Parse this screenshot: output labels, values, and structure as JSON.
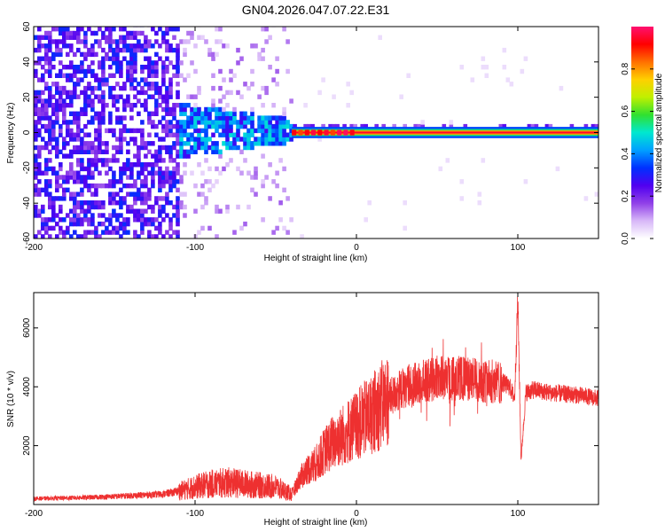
{
  "title": "GN04.2026.047.07.22.E31",
  "chart_data": [
    {
      "type": "heatmap",
      "xlabel": "Height of straight line (km)",
      "ylabel": "Frequency (Hz)",
      "xlim": [
        -200,
        150
      ],
      "ylim": [
        -60,
        60
      ],
      "xticks": [
        -200,
        -100,
        0,
        100
      ],
      "yticks": [
        -60,
        -40,
        -20,
        0,
        20,
        40,
        60
      ],
      "colorbar": {
        "label": "Normalized spectral amplitude",
        "range": [
          0,
          1
        ],
        "ticks": [
          0.0,
          0.2,
          0.4,
          0.6,
          0.8
        ],
        "tick_labels": [
          "0.0",
          "0.2",
          "0.4",
          "0.6",
          "0.8"
        ],
        "colormap": [
          "#ffffff",
          "#d8b8f8",
          "#9040e8",
          "#5000f0",
          "#0030ff",
          "#00a0ff",
          "#00e8d0",
          "#30e030",
          "#c0f000",
          "#ffd000",
          "#ff7000",
          "#ff0000",
          "#ff1070"
        ]
      },
      "regions": [
        {
          "name": "diffuse noise",
          "x_range": [
            -200,
            -110
          ],
          "freq_range": [
            -60,
            60
          ],
          "amplitude": 0.15
        },
        {
          "name": "sparse noise",
          "x_range": [
            -110,
            -40
          ],
          "freq_range": [
            -60,
            60
          ],
          "amplitude": 0.05
        },
        {
          "name": "signal onset cluster",
          "x_range": [
            -110,
            -40
          ],
          "freq_range": [
            -15,
            15
          ],
          "amplitude": 0.25
        },
        {
          "name": "carrier line",
          "x_range": [
            -40,
            150
          ],
          "freq_center": 0,
          "amplitude": 0.95
        }
      ]
    },
    {
      "type": "line",
      "xlabel": "Height of straight line (km)",
      "ylabel": "SNR (10 * v/v)",
      "xlim": [
        -200,
        150
      ],
      "ylim": [
        0,
        7200
      ],
      "xticks": [
        -200,
        -100,
        0,
        100
      ],
      "yticks": [
        2000,
        4000,
        6000
      ],
      "color": "#ee3030",
      "series": [
        {
          "name": "SNR",
          "x": [
            -200,
            -180,
            -160,
            -140,
            -120,
            -110,
            -100,
            -90,
            -80,
            -70,
            -60,
            -50,
            -40,
            -35,
            -30,
            -25,
            -20,
            -15,
            -10,
            -5,
            0,
            10,
            20,
            30,
            40,
            50,
            60,
            70,
            80,
            90,
            95,
            98,
            100,
            102,
            105,
            110,
            120,
            130,
            140,
            150
          ],
          "y": [
            200,
            220,
            250,
            300,
            350,
            450,
            600,
            700,
            750,
            700,
            650,
            600,
            350,
            900,
            1200,
            1400,
            1800,
            2100,
            2300,
            2500,
            2700,
            3100,
            3600,
            4000,
            4150,
            4300,
            4300,
            4250,
            4200,
            4150,
            4000,
            3600,
            7000,
            1500,
            3800,
            3900,
            3800,
            3750,
            3700,
            3600
          ]
        }
      ]
    }
  ]
}
